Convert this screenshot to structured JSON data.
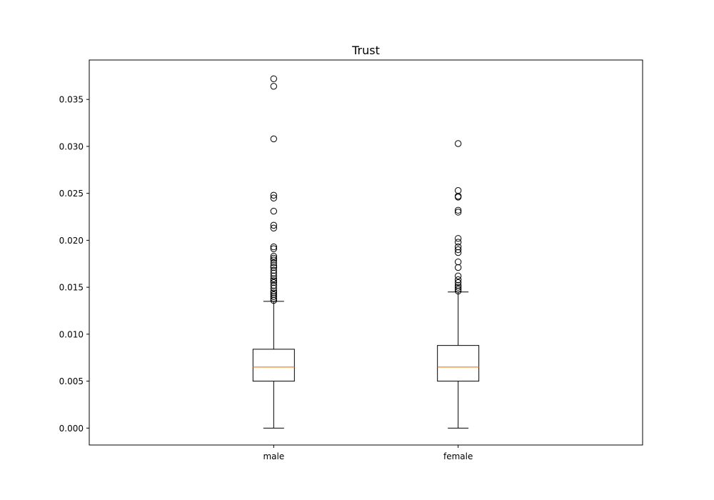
{
  "chart_data": {
    "type": "box",
    "title": "Trust",
    "xlabel": "",
    "ylabel": "",
    "ylim": [
      -0.0018,
      0.0392
    ],
    "yticks": [
      "0.000",
      "0.005",
      "0.010",
      "0.015",
      "0.020",
      "0.025",
      "0.030",
      "0.035"
    ],
    "ytick_values": [
      0.0,
      0.005,
      0.01,
      0.015,
      0.02,
      0.025,
      0.03,
      0.035
    ],
    "grid": false,
    "categories": [
      "male",
      "female"
    ],
    "boxes": [
      {
        "label": "male",
        "whisker_low": 0.0,
        "q1": 0.005,
        "median": 0.0065,
        "q3": 0.0084,
        "whisker_high": 0.0135,
        "outliers": [
          0.0372,
          0.0364,
          0.0308,
          0.0248,
          0.0245,
          0.0231,
          0.0216,
          0.0213,
          0.0193,
          0.0191,
          0.0183,
          0.0181,
          0.0179,
          0.0176,
          0.0173,
          0.0171,
          0.0168,
          0.0165,
          0.0162,
          0.0159,
          0.0157,
          0.0155,
          0.0152,
          0.0149,
          0.0146,
          0.0144,
          0.0142,
          0.014,
          0.0138,
          0.0136
        ]
      },
      {
        "label": "female",
        "whisker_low": 0.0,
        "q1": 0.005,
        "median": 0.0065,
        "q3": 0.0088,
        "whisker_high": 0.0145,
        "outliers": [
          0.0303,
          0.0253,
          0.0247,
          0.0246,
          0.0232,
          0.023,
          0.0202,
          0.0198,
          0.0193,
          0.019,
          0.0187,
          0.0177,
          0.0171,
          0.0162,
          0.0158,
          0.0155,
          0.0152,
          0.015,
          0.0148,
          0.0146
        ]
      }
    ],
    "colors": {
      "median": "#ff7f0e",
      "box": "#000000",
      "outlier": "#000000"
    }
  }
}
